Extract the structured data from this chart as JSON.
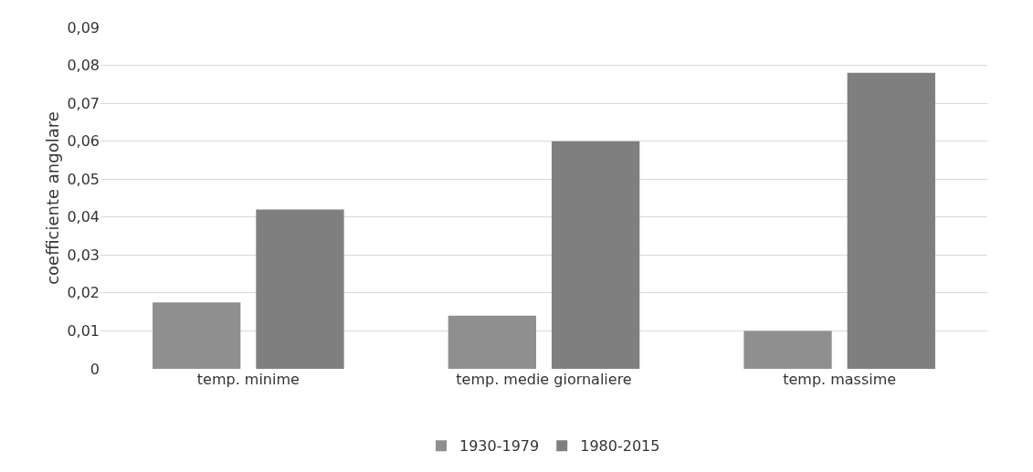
{
  "chart_data": {
    "type": "bar",
    "ylabel": "coefficiente angolare",
    "categories": [
      "temp. minime",
      "temp. medie giornaliere",
      "temp. massime"
    ],
    "series": [
      {
        "name": "1930-1979",
        "color": "#8f8f8f",
        "values": [
          0.0175,
          0.014,
          0.01
        ]
      },
      {
        "name": "1980-2015",
        "color": "#7f7f7f",
        "values": [
          0.042,
          0.06,
          0.078
        ]
      }
    ],
    "ylim": [
      0,
      0.09
    ],
    "yticks": [
      0,
      {
        "value": 0.01,
        "label": "0,01"
      },
      {
        "value": 0.02,
        "label": "0,02"
      },
      {
        "value": 0.03,
        "label": "0,03"
      },
      {
        "value": 0.04,
        "label": "0,04"
      },
      {
        "value": 0.05,
        "label": "0,05"
      },
      {
        "value": 0.06,
        "label": "0,06"
      },
      {
        "value": 0.07,
        "label": "0,07"
      },
      {
        "value": 0.08,
        "label": "0,08"
      },
      {
        "value": 0.09,
        "label": "0,09"
      }
    ],
    "grid": "y",
    "legend": "bottom"
  }
}
